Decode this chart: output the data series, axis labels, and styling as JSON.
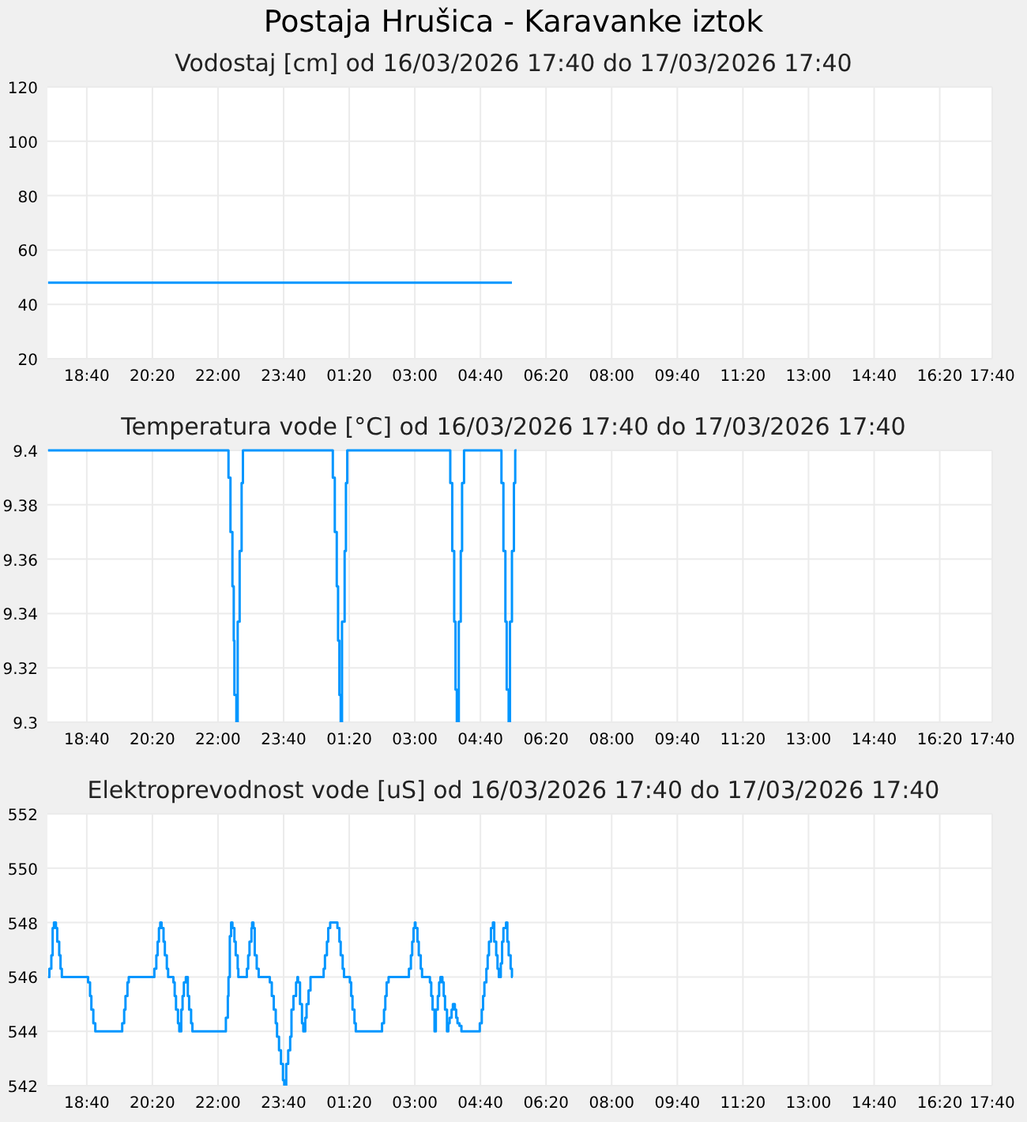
{
  "chart_data": [
    {
      "type": "step",
      "title": "Postaja Hrušica - Karavanke iztok",
      "subtitle": "Vodostaj [cm] od 16/03/2026 17:40 do 17/03/2026 17:40",
      "xlim": [
        "2026-03-16T17:40",
        "2026-03-17T17:40"
      ],
      "xticks": [
        {
          "value": "2026-03-16T18:40",
          "label": "18:40"
        },
        {
          "value": "2026-03-16T20:20",
          "label": "20:20"
        },
        {
          "value": "2026-03-16T22:00",
          "label": "22:00"
        },
        {
          "value": "2026-03-16T23:40",
          "label": "23:40"
        },
        {
          "value": "2026-03-17T01:20",
          "label": "01:20"
        },
        {
          "value": "2026-03-17T03:00",
          "label": "03:00"
        },
        {
          "value": "2026-03-17T04:40",
          "label": "04:40"
        },
        {
          "value": "2026-03-17T06:20",
          "label": "06:20"
        },
        {
          "value": "2026-03-17T08:00",
          "label": "08:00"
        },
        {
          "value": "2026-03-17T09:40",
          "label": "09:40"
        },
        {
          "value": "2026-03-17T11:20",
          "label": "11:20"
        },
        {
          "value": "2026-03-17T13:00",
          "label": "13:00"
        },
        {
          "value": "2026-03-17T14:40",
          "label": "14:40"
        },
        {
          "value": "2026-03-17T16:20",
          "label": "16:20"
        },
        {
          "value": "2026-03-17T17:40",
          "label": "17:40"
        }
      ],
      "ylim": [
        20,
        120
      ],
      "yticks": [
        20,
        40,
        60,
        80,
        100,
        120
      ],
      "grid": true,
      "marker": "none",
      "series": [
        {
          "color": "#0096ff",
          "x": [
            "2026-03-16T17:41",
            "2026-03-17T05:28"
          ],
          "values": [
            48,
            48
          ]
        }
      ]
    },
    {
      "type": "step",
      "subtitle": "Temperatura vode [°C] od 16/03/2026 17:40 do 17/03/2026 17:40",
      "xlim": [
        "2026-03-16T17:40",
        "2026-03-17T17:40"
      ],
      "xticks": [
        {
          "value": "2026-03-16T18:40",
          "label": "18:40"
        },
        {
          "value": "2026-03-16T20:20",
          "label": "20:20"
        },
        {
          "value": "2026-03-16T22:00",
          "label": "22:00"
        },
        {
          "value": "2026-03-16T23:40",
          "label": "23:40"
        },
        {
          "value": "2026-03-17T01:20",
          "label": "01:20"
        },
        {
          "value": "2026-03-17T03:00",
          "label": "03:00"
        },
        {
          "value": "2026-03-17T04:40",
          "label": "04:40"
        },
        {
          "value": "2026-03-17T06:20",
          "label": "06:20"
        },
        {
          "value": "2026-03-17T08:00",
          "label": "08:00"
        },
        {
          "value": "2026-03-17T09:40",
          "label": "09:40"
        },
        {
          "value": "2026-03-17T11:20",
          "label": "11:20"
        },
        {
          "value": "2026-03-17T13:00",
          "label": "13:00"
        },
        {
          "value": "2026-03-17T14:40",
          "label": "14:40"
        },
        {
          "value": "2026-03-17T16:20",
          "label": "16:20"
        },
        {
          "value": "2026-03-17T17:40",
          "label": "17:40"
        }
      ],
      "ylim": [
        9.3,
        9.4
      ],
      "yticks": [
        9.3,
        9.32,
        9.34,
        9.36,
        9.38,
        9.4
      ],
      "grid": true,
      "marker": "none",
      "series": [
        {
          "color": "#0096ff",
          "x": [
            "2026-03-16T17:41",
            "2026-03-16T22:16",
            "2026-03-16T22:19",
            "2026-03-16T22:22",
            "2026-03-16T22:24",
            "2026-03-16T22:25",
            "2026-03-16T22:28",
            "2026-03-16T22:30",
            "2026-03-16T22:33",
            "2026-03-16T22:36",
            "2026-03-16T22:38",
            "2026-03-17T00:55",
            "2026-03-17T00:58",
            "2026-03-17T01:01",
            "2026-03-17T01:03",
            "2026-03-17T01:05",
            "2026-03-17T01:07",
            "2026-03-17T01:09",
            "2026-03-17T01:13",
            "2026-03-17T01:15",
            "2026-03-17T01:17",
            "2026-03-17T03:54",
            "2026-03-17T03:57",
            "2026-03-17T04:00",
            "2026-03-17T04:02",
            "2026-03-17T04:04",
            "2026-03-17T04:07",
            "2026-03-17T04:10",
            "2026-03-17T04:12",
            "2026-03-17T04:15",
            "2026-03-17T05:12",
            "2026-03-17T05:15",
            "2026-03-17T05:18",
            "2026-03-17T05:20",
            "2026-03-17T05:23",
            "2026-03-17T05:25",
            "2026-03-17T05:28",
            "2026-03-17T05:31",
            "2026-03-17T05:33",
            "2026-03-17T05:35"
          ],
          "values": [
            9.4,
            9.39,
            9.37,
            9.35,
            9.33,
            9.31,
            9.3,
            9.337,
            9.363,
            9.388,
            9.4,
            9.39,
            9.37,
            9.35,
            9.33,
            9.31,
            9.3,
            9.337,
            9.363,
            9.388,
            9.4,
            9.388,
            9.363,
            9.337,
            9.312,
            9.3,
            9.337,
            9.363,
            9.388,
            9.4,
            9.388,
            9.363,
            9.337,
            9.312,
            9.3,
            9.337,
            9.363,
            9.388,
            9.4,
            9.4
          ]
        }
      ]
    },
    {
      "type": "step",
      "subtitle": "Elektroprevodnost vode [uS] od 16/03/2026 17:40 do 17/03/2026 17:40",
      "xlim": [
        "2026-03-16T17:40",
        "2026-03-17T17:40"
      ],
      "xticks": [
        {
          "value": "2026-03-16T18:40",
          "label": "18:40"
        },
        {
          "value": "2026-03-16T20:20",
          "label": "20:20"
        },
        {
          "value": "2026-03-16T22:00",
          "label": "22:00"
        },
        {
          "value": "2026-03-16T23:40",
          "label": "23:40"
        },
        {
          "value": "2026-03-17T01:20",
          "label": "01:20"
        },
        {
          "value": "2026-03-17T03:00",
          "label": "03:00"
        },
        {
          "value": "2026-03-17T04:40",
          "label": "04:40"
        },
        {
          "value": "2026-03-17T06:20",
          "label": "06:20"
        },
        {
          "value": "2026-03-17T08:00",
          "label": "08:00"
        },
        {
          "value": "2026-03-17T09:40",
          "label": "09:40"
        },
        {
          "value": "2026-03-17T11:20",
          "label": "11:20"
        },
        {
          "value": "2026-03-17T13:00",
          "label": "13:00"
        },
        {
          "value": "2026-03-17T14:40",
          "label": "14:40"
        },
        {
          "value": "2026-03-17T16:20",
          "label": "16:20"
        },
        {
          "value": "2026-03-17T17:40",
          "label": "17:40"
        }
      ],
      "ylim": [
        542,
        552
      ],
      "yticks": [
        542,
        544,
        546,
        548,
        550,
        552
      ],
      "grid": true,
      "marker": "none",
      "series": [
        {
          "color": "#0096ff",
          "x": [
            "2026-03-16T17:41",
            "2026-03-16T17:43",
            "2026-03-16T17:46",
            "2026-03-16T17:48",
            "2026-03-16T17:50",
            "2026-03-16T17:53",
            "2026-03-16T17:55",
            "2026-03-16T17:58",
            "2026-03-16T18:00",
            "2026-03-16T18:02",
            "2026-03-16T18:42",
            "2026-03-16T18:45",
            "2026-03-16T18:47",
            "2026-03-16T18:50",
            "2026-03-16T18:53",
            "2026-03-16T19:34",
            "2026-03-16T19:37",
            "2026-03-16T19:39",
            "2026-03-16T19:42",
            "2026-03-16T19:44",
            "2026-03-16T20:23",
            "2026-03-16T20:26",
            "2026-03-16T20:28",
            "2026-03-16T20:30",
            "2026-03-16T20:32",
            "2026-03-16T20:34",
            "2026-03-16T20:37",
            "2026-03-16T20:39",
            "2026-03-16T20:42",
            "2026-03-16T20:44",
            "2026-03-16T20:52",
            "2026-03-16T20:54",
            "2026-03-16T20:56",
            "2026-03-16T20:59",
            "2026-03-16T21:01",
            "2026-03-16T21:04",
            "2026-03-16T21:06",
            "2026-03-16T21:08",
            "2026-03-16T21:11",
            "2026-03-16T21:14",
            "2026-03-16T21:16",
            "2026-03-16T21:19",
            "2026-03-16T21:21",
            "2026-03-16T22:12",
            "2026-03-16T22:15",
            "2026-03-16T22:16",
            "2026-03-16T22:18",
            "2026-03-16T22:20",
            "2026-03-16T22:22",
            "2026-03-16T22:25",
            "2026-03-16T22:27",
            "2026-03-16T22:30",
            "2026-03-16T22:31",
            "2026-03-16T22:44",
            "2026-03-16T22:46",
            "2026-03-16T22:48",
            "2026-03-16T22:51",
            "2026-03-16T22:52",
            "2026-03-16T22:54",
            "2026-03-16T22:56",
            "2026-03-16T22:59",
            "2026-03-16T23:02",
            "2026-03-16T23:19",
            "2026-03-16T23:22",
            "2026-03-16T23:25",
            "2026-03-16T23:28",
            "2026-03-16T23:30",
            "2026-03-16T23:33",
            "2026-03-16T23:36",
            "2026-03-16T23:39",
            "2026-03-16T23:41",
            "2026-03-16T23:44",
            "2026-03-16T23:47",
            "2026-03-16T23:50",
            "2026-03-16T23:52",
            "2026-03-16T23:55",
            "2026-03-16T23:59",
            "2026-03-17T00:01",
            "2026-03-17T00:02",
            "2026-03-17T00:05",
            "2026-03-17T00:08",
            "2026-03-17T00:10",
            "2026-03-17T00:13",
            "2026-03-17T00:15",
            "2026-03-17T00:18",
            "2026-03-17T00:21",
            "2026-03-17T00:41",
            "2026-03-17T00:43",
            "2026-03-17T00:46",
            "2026-03-17T00:48",
            "2026-03-17T00:51",
            "2026-03-17T01:02",
            "2026-03-17T01:05",
            "2026-03-17T01:07",
            "2026-03-17T01:10",
            "2026-03-17T01:12",
            "2026-03-17T01:21",
            "2026-03-17T01:23",
            "2026-03-17T01:25",
            "2026-03-17T01:28",
            "2026-03-17T01:30",
            "2026-03-17T02:10",
            "2026-03-17T02:13",
            "2026-03-17T02:15",
            "2026-03-17T02:17",
            "2026-03-17T02:20",
            "2026-03-17T02:51",
            "2026-03-17T02:54",
            "2026-03-17T02:56",
            "2026-03-17T02:58",
            "2026-03-17T03:00",
            "2026-03-17T03:01",
            "2026-03-17T03:04",
            "2026-03-17T03:06",
            "2026-03-17T03:09",
            "2026-03-17T03:11",
            "2026-03-17T03:23",
            "2026-03-17T03:25",
            "2026-03-17T03:27",
            "2026-03-17T03:30",
            "2026-03-17T03:32",
            "2026-03-17T03:35",
            "2026-03-17T03:37",
            "2026-03-17T03:39",
            "2026-03-17T03:42",
            "2026-03-17T03:44",
            "2026-03-17T03:46",
            "2026-03-17T03:49",
            "2026-03-17T03:51",
            "2026-03-17T03:53",
            "2026-03-17T03:56",
            "2026-03-17T03:58",
            "2026-03-17T04:01",
            "2026-03-17T04:03",
            "2026-03-17T04:05",
            "2026-03-17T04:08",
            "2026-03-17T04:11",
            "2026-03-17T04:39",
            "2026-03-17T04:42",
            "2026-03-17T04:44",
            "2026-03-17T04:46",
            "2026-03-17T04:49",
            "2026-03-17T04:51",
            "2026-03-17T04:53",
            "2026-03-17T04:56",
            "2026-03-17T04:59",
            "2026-03-17T05:01",
            "2026-03-17T05:04",
            "2026-03-17T05:06",
            "2026-03-17T05:08",
            "2026-03-17T05:11",
            "2026-03-17T05:13",
            "2026-03-17T05:15",
            "2026-03-17T05:19",
            "2026-03-17T05:21",
            "2026-03-17T05:23",
            "2026-03-17T05:26",
            "2026-03-17T05:28",
            "2026-03-17T05:29"
          ],
          "values": [
            546,
            546.3,
            546.8,
            547.8,
            548,
            547.8,
            547.3,
            546.8,
            546.3,
            546,
            545.8,
            545.3,
            544.8,
            544.3,
            544,
            544.3,
            544.8,
            545.3,
            545.8,
            546,
            546.3,
            546.8,
            547.3,
            547.8,
            548,
            547.8,
            547.3,
            546.8,
            546.3,
            546,
            545.8,
            545.3,
            544.8,
            544.3,
            544,
            544.8,
            545.3,
            545.8,
            546,
            545.3,
            544.8,
            544.3,
            544,
            544.5,
            545.3,
            546,
            547.5,
            548,
            547.8,
            547.3,
            546.8,
            546.3,
            546,
            546.3,
            546.8,
            547.3,
            547.8,
            548,
            547.8,
            546.8,
            546.3,
            546,
            545.8,
            545.3,
            544.8,
            544.3,
            543.8,
            543.3,
            542.8,
            542.2,
            542,
            542.8,
            543.3,
            543.8,
            544.8,
            545.3,
            545.8,
            546,
            545.8,
            545,
            544.3,
            544,
            544.5,
            545,
            545.5,
            546,
            546.3,
            546.8,
            547.3,
            547.8,
            548,
            547.8,
            547.3,
            546.8,
            546.3,
            546,
            545.8,
            545.3,
            544.8,
            544.3,
            544,
            544.3,
            544.8,
            545.3,
            545.8,
            546,
            546.3,
            546.8,
            547.3,
            547.8,
            548,
            547.8,
            547.3,
            546.8,
            546.3,
            546,
            545.8,
            545.3,
            544.8,
            544,
            544.8,
            545.3,
            545.8,
            546,
            545.8,
            545.3,
            544.8,
            544,
            544.3,
            544.5,
            544.8,
            545,
            544.8,
            544.5,
            544.3,
            544.2,
            544,
            544.3,
            544.8,
            545.3,
            545.8,
            546.3,
            546.8,
            547.3,
            547.8,
            548,
            547.3,
            546.8,
            546.3,
            546,
            546.5,
            547.3,
            547.8,
            548,
            547.3,
            546.8,
            546.3,
            546,
            546
          ]
        }
      ]
    }
  ]
}
